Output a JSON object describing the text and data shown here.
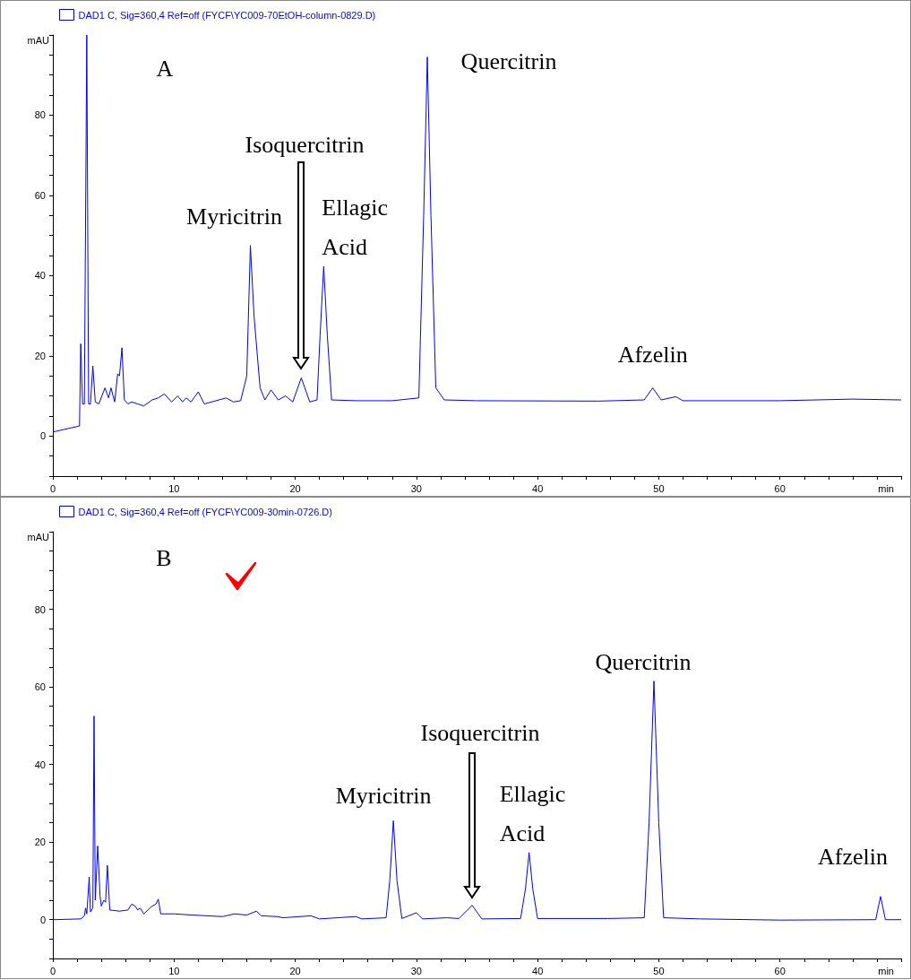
{
  "chart_data": [
    {
      "type": "line",
      "xlabel": "min",
      "ylabel": "mAU",
      "legend": "top left",
      "marker": "none",
      "line_style": "solid",
      "xlim": [
        0,
        70
      ],
      "ylim": [
        -10,
        100
      ],
      "xticks": [
        0,
        {
          "value": 2,
          "label": null
        },
        {
          "value": 4,
          "label": null
        },
        {
          "value": 6,
          "label": null
        },
        {
          "value": 8,
          "label": null
        },
        10,
        {
          "value": 12,
          "label": null
        },
        {
          "value": 14,
          "label": null
        },
        {
          "value": 16,
          "label": null
        },
        {
          "value": 18,
          "label": null
        },
        20,
        {
          "value": 22,
          "label": null
        },
        {
          "value": 24,
          "label": null
        },
        {
          "value": 26,
          "label": null
        },
        {
          "value": 28,
          "label": null
        },
        30,
        {
          "value": 32,
          "label": null
        },
        {
          "value": 34,
          "label": null
        },
        {
          "value": 36,
          "label": null
        },
        {
          "value": 38,
          "label": null
        },
        40,
        {
          "value": 42,
          "label": null
        },
        {
          "value": 44,
          "label": null
        },
        {
          "value": 46,
          "label": null
        },
        {
          "value": 48,
          "label": null
        },
        50,
        {
          "value": 52,
          "label": null
        },
        {
          "value": 54,
          "label": null
        },
        {
          "value": 56,
          "label": null
        },
        {
          "value": 58,
          "label": null
        },
        60,
        {
          "value": 62,
          "label": null
        },
        {
          "value": 64,
          "label": null
        },
        {
          "value": 66,
          "label": null
        },
        {
          "value": 68,
          "label": null
        },
        {
          "value": 70,
          "label": null
        }
      ],
      "yticks": [
        {
          "value": -10,
          "label": null
        },
        {
          "value": -5,
          "label": null
        },
        0,
        {
          "value": 5,
          "label": null
        },
        {
          "value": 10,
          "label": null
        },
        {
          "value": 15,
          "label": null
        },
        20,
        {
          "value": 25,
          "label": null
        },
        {
          "value": 30,
          "label": null
        },
        {
          "value": 35,
          "label": null
        },
        40,
        {
          "value": 45,
          "label": null
        },
        {
          "value": 50,
          "label": null
        },
        {
          "value": 55,
          "label": null
        },
        60,
        {
          "value": 65,
          "label": null
        },
        {
          "value": 70,
          "label": null
        },
        {
          "value": 75,
          "label": null
        },
        80,
        {
          "value": 85,
          "label": null
        },
        {
          "value": 90,
          "label": null
        },
        {
          "value": 95,
          "label": null
        },
        {
          "value": 100,
          "label": null
        }
      ],
      "series": [
        {
          "name": "DAD1 C, Sig=360,4 Ref=off (FYCF\\YC009-70EtOH-column-0829.D)",
          "color": "#0000ff",
          "x": [
            0,
            2.2,
            2.3,
            2.45,
            2.6,
            2.8,
            2.95,
            3.1,
            3.3,
            3.5,
            3.8,
            4.3,
            4.6,
            4.8,
            5.1,
            5.35,
            5.5,
            5.7,
            5.9,
            6.2,
            6.5,
            7,
            7.5,
            8.2,
            8.7,
            9.2,
            9.8,
            10.3,
            10.7,
            11,
            11.4,
            12,
            12.5,
            14.3,
            14.9,
            15.5,
            16,
            16.3,
            16.6,
            17.1,
            17.5,
            18,
            18.6,
            19.2,
            19.8,
            20.5,
            21.2,
            21.8,
            22.05,
            22.35,
            22.65,
            23,
            25,
            28,
            30.2,
            30.6,
            30.9,
            31.2,
            31.6,
            32.3,
            35,
            45,
            48.8,
            49.5,
            50.2,
            51.4,
            52,
            60,
            66,
            70
          ],
          "values": [
            1,
            2.5,
            23,
            8,
            8,
            100,
            8,
            8,
            17.5,
            8.5,
            8,
            12,
            9.5,
            12,
            8.5,
            15.5,
            15,
            22,
            9,
            8,
            8.5,
            8,
            7.5,
            9,
            9.5,
            10.5,
            8.5,
            10,
            8.5,
            9.5,
            8.5,
            11,
            8,
            9.5,
            8.5,
            8.8,
            15,
            47.5,
            30,
            12,
            9,
            11.5,
            9,
            10,
            8.5,
            14.5,
            8.5,
            9,
            25,
            42.3,
            25,
            9,
            8.8,
            8.8,
            9.5,
            55,
            94.5,
            55,
            12,
            9,
            8.8,
            8.7,
            9,
            12,
            9,
            9.8,
            8.8,
            8.8,
            9.2,
            9
          ]
        }
      ],
      "annotations": [
        "A",
        {
          "text": "Myricitrin",
          "x": 16.3,
          "y": 47.5
        },
        "Isoquercitrin",
        {
          "text": "Ellagic Acid",
          "x": 22.35,
          "y": 42.3
        },
        {
          "text": "Quercitrin",
          "x": 30.9,
          "y": 94.5
        },
        {
          "text": "Afzelin",
          "x": 49.5,
          "y": 12
        }
      ]
    },
    {
      "type": "line",
      "xlabel": "min",
      "ylabel": "mAU",
      "legend": "top left",
      "marker": "none",
      "line_style": "solid",
      "xlim": [
        0,
        70
      ],
      "ylim": [
        -10,
        100
      ],
      "xticks": [
        0,
        {
          "value": 2,
          "label": null
        },
        {
          "value": 4,
          "label": null
        },
        {
          "value": 6,
          "label": null
        },
        {
          "value": 8,
          "label": null
        },
        10,
        {
          "value": 12,
          "label": null
        },
        {
          "value": 14,
          "label": null
        },
        {
          "value": 16,
          "label": null
        },
        {
          "value": 18,
          "label": null
        },
        20,
        {
          "value": 22,
          "label": null
        },
        {
          "value": 24,
          "label": null
        },
        {
          "value": 26,
          "label": null
        },
        {
          "value": 28,
          "label": null
        },
        30,
        {
          "value": 32,
          "label": null
        },
        {
          "value": 34,
          "label": null
        },
        {
          "value": 36,
          "label": null
        },
        {
          "value": 38,
          "label": null
        },
        40,
        {
          "value": 42,
          "label": null
        },
        {
          "value": 44,
          "label": null
        },
        {
          "value": 46,
          "label": null
        },
        {
          "value": 48,
          "label": null
        },
        50,
        {
          "value": 52,
          "label": null
        },
        {
          "value": 54,
          "label": null
        },
        {
          "value": 56,
          "label": null
        },
        {
          "value": 58,
          "label": null
        },
        60,
        {
          "value": 62,
          "label": null
        },
        {
          "value": 64,
          "label": null
        },
        {
          "value": 66,
          "label": null
        },
        {
          "value": 68,
          "label": null
        },
        {
          "value": 70,
          "label": null
        }
      ],
      "yticks": [
        {
          "value": -10,
          "label": null
        },
        {
          "value": -5,
          "label": null
        },
        0,
        {
          "value": 5,
          "label": null
        },
        {
          "value": 10,
          "label": null
        },
        {
          "value": 15,
          "label": null
        },
        20,
        {
          "value": 25,
          "label": null
        },
        {
          "value": 30,
          "label": null
        },
        {
          "value": 35,
          "label": null
        },
        40,
        {
          "value": 45,
          "label": null
        },
        {
          "value": 50,
          "label": null
        },
        {
          "value": 55,
          "label": null
        },
        60,
        {
          "value": 65,
          "label": null
        },
        {
          "value": 70,
          "label": null
        },
        {
          "value": 75,
          "label": null
        },
        80,
        {
          "value": 85,
          "label": null
        },
        {
          "value": 90,
          "label": null
        },
        {
          "value": 95,
          "label": null
        },
        {
          "value": 100,
          "label": null
        }
      ],
      "series": [
        {
          "name": "DAD1 C, Sig=360,4 Ref=off (FYCF\\YC009-30min-0726.D)",
          "color": "#0000ff",
          "x": [
            0,
            2.3,
            2.6,
            2.7,
            2.8,
            3.0,
            3.1,
            3.3,
            3.4,
            3.5,
            3.7,
            3.9,
            4.0,
            4.2,
            4.35,
            4.5,
            4.7,
            5.5,
            6.2,
            6.5,
            6.8,
            7.0,
            7.2,
            7.5,
            8.2,
            8.5,
            8.7,
            8.9,
            10,
            11.5,
            14,
            15,
            16,
            16.8,
            17.2,
            18.5,
            19,
            21.3,
            22,
            25,
            25.5,
            27.5,
            27.8,
            28.1,
            28.4,
            28.8,
            30,
            30.5,
            32.5,
            33.5,
            34.6,
            35.4,
            38.6,
            39,
            39.3,
            39.6,
            40,
            45.8,
            48.8,
            49.2,
            49.6,
            50,
            50.4,
            53.4,
            60,
            67.9,
            68.3,
            68.7,
            70
          ],
          "values": [
            0,
            0.2,
            1,
            3,
            1.5,
            11,
            2,
            3,
            52.5,
            5,
            19,
            6,
            3.5,
            5,
            4.5,
            14,
            2.5,
            2.2,
            2.5,
            4,
            3.5,
            2.5,
            3,
            1.5,
            3.5,
            4,
            5.3,
            1.5,
            1.5,
            1.2,
            0.8,
            1.5,
            1.2,
            2.2,
            1,
            0.8,
            0.5,
            1,
            0.2,
            0.8,
            0.2,
            0.5,
            10,
            25.5,
            10,
            0.3,
            1.8,
            0.2,
            0.5,
            0.3,
            3.7,
            0.2,
            0.3,
            8,
            17.3,
            8,
            0.3,
            0.3,
            0.5,
            25,
            61.5,
            25,
            0.5,
            0.2,
            -0.1,
            0,
            6,
            0,
            0
          ]
        }
      ],
      "annotations": [
        "B",
        {
          "text": "Myricitrin",
          "x": 28.1,
          "y": 25.5
        },
        "Isoquercitrin",
        {
          "text": "Ellagic Acid",
          "x": 39.3,
          "y": 17.3
        },
        {
          "text": "Quercitrin",
          "x": 49.6,
          "y": 61.5
        },
        {
          "text": "Afzelin",
          "x": 68.3,
          "y": 6
        }
      ]
    }
  ]
}
